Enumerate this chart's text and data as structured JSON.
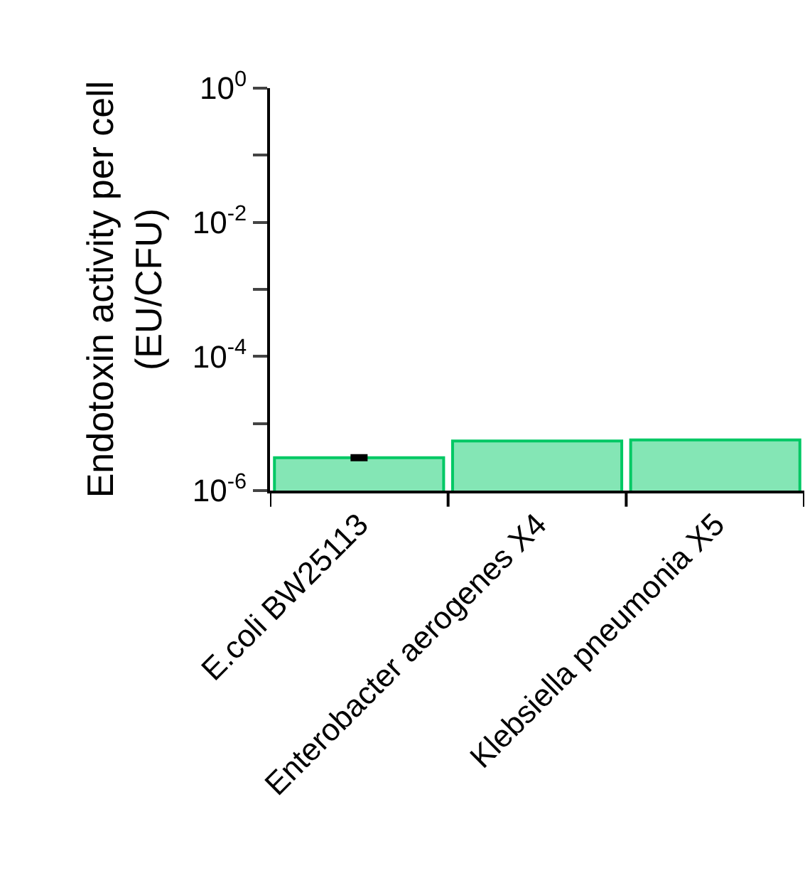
{
  "chart_data": {
    "type": "bar",
    "ylabel": "Endotoxin activity per cell\n(EU/CFU)",
    "categories": [
      "E.coli BW25113",
      "Enterobacter aerogenes X4",
      "Klebsiella pneumonia X5"
    ],
    "values": [
      3.1e-06,
      5.5e-06,
      5.7e-06
    ],
    "errors": [
      1.5e-07,
      null,
      null
    ],
    "color": "#84e6b5",
    "log": true,
    "ylim": [
      1e-06,
      1
    ],
    "yticks": [
      {
        "value": 1e-06,
        "label": "10$^{-6}$"
      },
      {
        "value": 1e-05,
        "label": null
      },
      {
        "value": 0.0001,
        "label": "10$^{-4}$"
      },
      {
        "value": 0.001,
        "label": null
      },
      {
        "value": 0.01,
        "label": "10$^{-2}$"
      },
      {
        "value": 0.1,
        "label": null
      },
      {
        "value": 1,
        "label": "10$^{0}$"
      }
    ],
    "legend": false
  }
}
